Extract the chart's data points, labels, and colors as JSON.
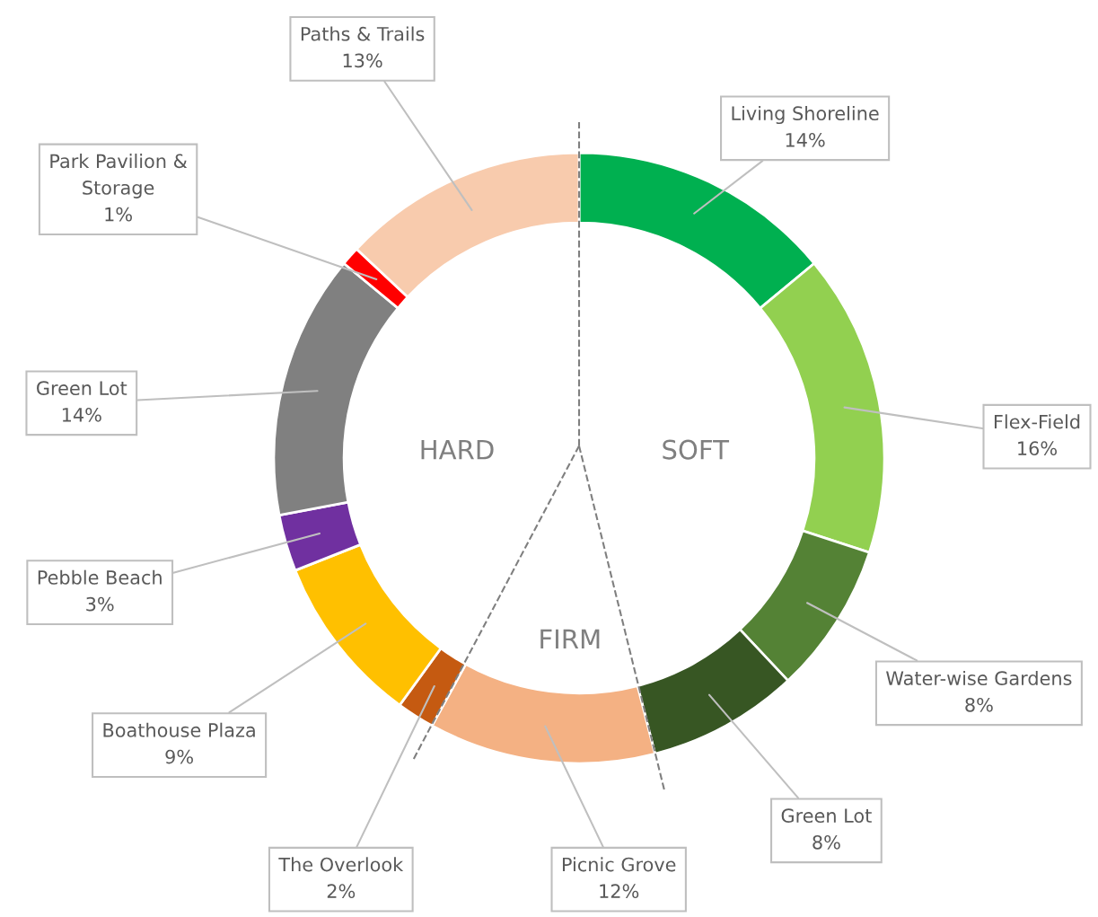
{
  "chart_data": {
    "type": "donut",
    "categories": [
      "Living Shoreline",
      "Flex-Field",
      "Water-wise Gardens",
      "Green Lot",
      "Picnic Grove",
      "The Overlook",
      "Boathouse Plaza",
      "Pebble Beach",
      "Green Lot",
      "Park Pavilion & Storage",
      "Paths & Trails"
    ],
    "values": [
      14,
      16,
      8,
      8,
      12,
      2,
      9,
      3,
      14,
      1,
      13
    ],
    "value_labels": [
      "14%",
      "16%",
      "8%",
      "8%",
      "12%",
      "2%",
      "9%",
      "3%",
      "14%",
      "1%",
      "13%"
    ],
    "colors": [
      "#00b050",
      "#92d050",
      "#548235",
      "#375623",
      "#f4b183",
      "#c55a11",
      "#ffc000",
      "#7030a0",
      "#808080",
      "#ff0000",
      "#f8cbad"
    ],
    "annotations": [
      "SOFT",
      "FIRM",
      "HARD"
    ]
  }
}
